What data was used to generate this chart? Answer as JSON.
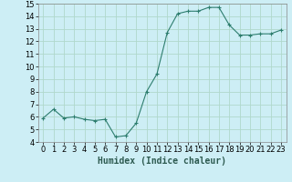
{
  "x": [
    0,
    1,
    2,
    3,
    4,
    5,
    6,
    7,
    8,
    9,
    10,
    11,
    12,
    13,
    14,
    15,
    16,
    17,
    18,
    19,
    20,
    21,
    22,
    23
  ],
  "y": [
    5.9,
    6.6,
    5.9,
    6.0,
    5.8,
    5.7,
    5.8,
    4.4,
    4.5,
    5.5,
    8.0,
    9.4,
    12.7,
    14.2,
    14.4,
    14.4,
    14.7,
    14.7,
    13.3,
    12.5,
    12.5,
    12.6,
    12.6,
    12.9
  ],
  "line_color": "#2d7d6e",
  "marker": "+",
  "marker_size": 3,
  "bg_color": "#cdeef5",
  "grid_color": "#b0d8cc",
  "xlabel": "Humidex (Indice chaleur)",
  "ylim": [
    4,
    15
  ],
  "yticks": [
    4,
    5,
    6,
    7,
    8,
    9,
    10,
    11,
    12,
    13,
    14,
    15
  ],
  "xlim": [
    -0.5,
    23.5
  ],
  "xtick_labels": [
    "0",
    "1",
    "2",
    "3",
    "4",
    "5",
    "6",
    "7",
    "8",
    "9",
    "10",
    "11",
    "12",
    "13",
    "14",
    "15",
    "16",
    "17",
    "18",
    "19",
    "20",
    "21",
    "22",
    "23"
  ],
  "label_fontsize": 7,
  "tick_fontsize": 6
}
